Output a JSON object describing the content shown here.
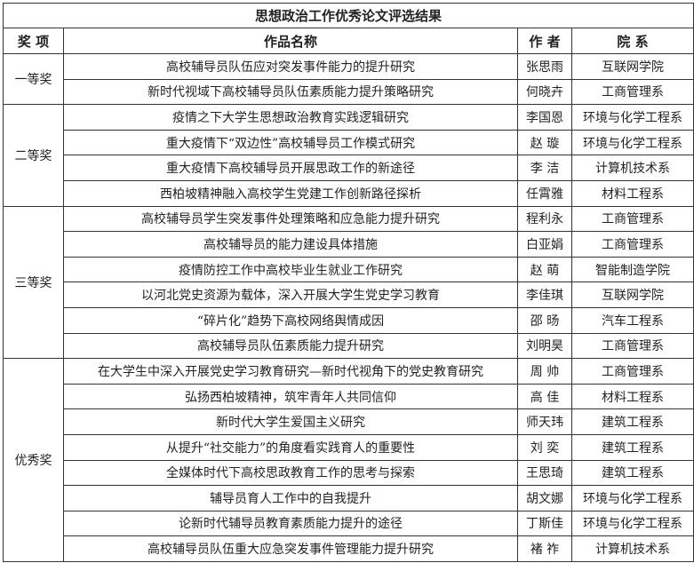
{
  "title": "思想政治工作优秀论文评选结果",
  "headers": {
    "award": "奖 项",
    "work": "作品名称",
    "author": "作 者",
    "dept": "院 系"
  },
  "groups": [
    {
      "award": "一等奖",
      "rows": [
        {
          "work": "高校辅导员队伍应对突发事件能力的提升研究",
          "author": "张思雨",
          "dept": "互联网学院"
        },
        {
          "work": "新时代视域下高校辅导员队伍素质能力提升策略研究",
          "author": "何晓卉",
          "dept": "工商管理系"
        }
      ]
    },
    {
      "award": "二等奖",
      "rows": [
        {
          "work": "疫情之下大学生思想政治教育实践逻辑研究",
          "author": "李国恩",
          "dept": "环境与化学工程系"
        },
        {
          "work": "重大疫情下“双边性”高校辅导员工作模式研究",
          "author": "赵 璇",
          "dept": "环境与化学工程系"
        },
        {
          "work": "重大疫情下高校辅导员开展思政工作的新途径",
          "author": "李 洁",
          "dept": "计算机技术系"
        },
        {
          "work": "西柏坡精神融入高校学生党建工作创新路径探析",
          "author": "任霄雅",
          "dept": "材料工程系"
        }
      ]
    },
    {
      "award": "三等奖",
      "rows": [
        {
          "work": "高校辅导员学生突发事件处理策略和应急能力提升研究",
          "author": "程利永",
          "dept": "工商管理系"
        },
        {
          "work": "高校辅导员的能力建设具体措施",
          "author": "白亚娟",
          "dept": "工商管理系"
        },
        {
          "work": "疫情防控工作中高校毕业生就业工作研究",
          "author": "赵 萌",
          "dept": "智能制造学院"
        },
        {
          "work": "以河北党史资源为载体，深入开展大学生党史学习教育",
          "author": "李佳琪",
          "dept": "互联网学院"
        },
        {
          "work": "“碎片化”趋势下高校网络舆情成因",
          "author": "邵 旸",
          "dept": "汽车工程系"
        },
        {
          "work": "高校辅导员队伍素质能力提升研究",
          "author": "刘明昊",
          "dept": "工商管理系"
        }
      ]
    },
    {
      "award": "优秀奖",
      "rows": [
        {
          "work": "在大学生中深入开展党史学习教育研究—新时代视角下的党史教育研究",
          "author": "周 帅",
          "dept": "工商管理系"
        },
        {
          "work": "弘扬西柏坡精神，筑牢青年人共同信仰",
          "author": "高 佳",
          "dept": "材料工程系"
        },
        {
          "work": "新时代大学生爱国主义研究",
          "author": "师天玮",
          "dept": "建筑工程系"
        },
        {
          "work": "从提升“社交能力”的角度看实践育人的重要性",
          "author": "刘 奕",
          "dept": "建筑工程系"
        },
        {
          "work": "全媒体时代下高校思政教育工作的思考与探索",
          "author": "王思琦",
          "dept": "建筑工程系"
        },
        {
          "work": "辅导员育人工作中的自我提升",
          "author": "胡文娜",
          "dept": "环境与化学工程系"
        },
        {
          "work": "论新时代辅导员教育素质能力提升的途径",
          "author": "丁斯佳",
          "dept": "环境与化学工程系"
        },
        {
          "work": "高校辅导员队伍重大应急突发事件管理能力提升研究",
          "author": "褚 祚",
          "dept": "计算机技术系"
        }
      ]
    }
  ]
}
